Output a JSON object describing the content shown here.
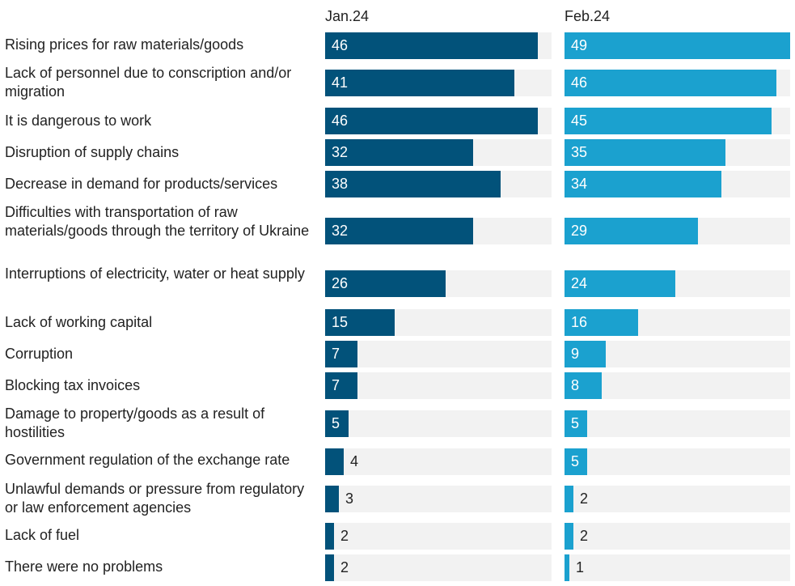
{
  "chart_data": {
    "type": "bar",
    "orientation": "horizontal",
    "title": "",
    "xlabel": "",
    "ylabel": "",
    "xlim": [
      0,
      49
    ],
    "grid": false,
    "legend": "none",
    "categories": [
      "Rising prices for raw materials/goods",
      "Lack of personnel due to conscription and/or migration",
      "It is dangerous to work",
      "Disruption of supply chains",
      "Decrease in demand for products/services",
      "Difficulties with transportation of raw materials/goods through the territory of Ukraine",
      "Interruptions of electricity, water or heat supply",
      "Lack of working capital",
      "Corruption",
      "Blocking tax invoices",
      "Damage to property/goods as a result of hostilities",
      "Government regulation of the exchange rate",
      "Unlawful demands or pressure from regulatory or law enforcement agencies",
      "Lack of fuel",
      "There were no problems"
    ],
    "series": [
      {
        "name": "Jan.24",
        "color": "#02527a",
        "values": [
          46,
          41,
          46,
          32,
          38,
          32,
          26,
          15,
          7,
          7,
          5,
          4,
          3,
          2,
          2
        ]
      },
      {
        "name": "Feb.24",
        "color": "#1ba1cf",
        "values": [
          49,
          46,
          45,
          35,
          34,
          29,
          24,
          16,
          9,
          8,
          5,
          5,
          2,
          2,
          1
        ]
      }
    ]
  },
  "colors": {
    "track": "#f2f2f2",
    "label_inside": "#ffffff",
    "label_outside": "#222222"
  }
}
